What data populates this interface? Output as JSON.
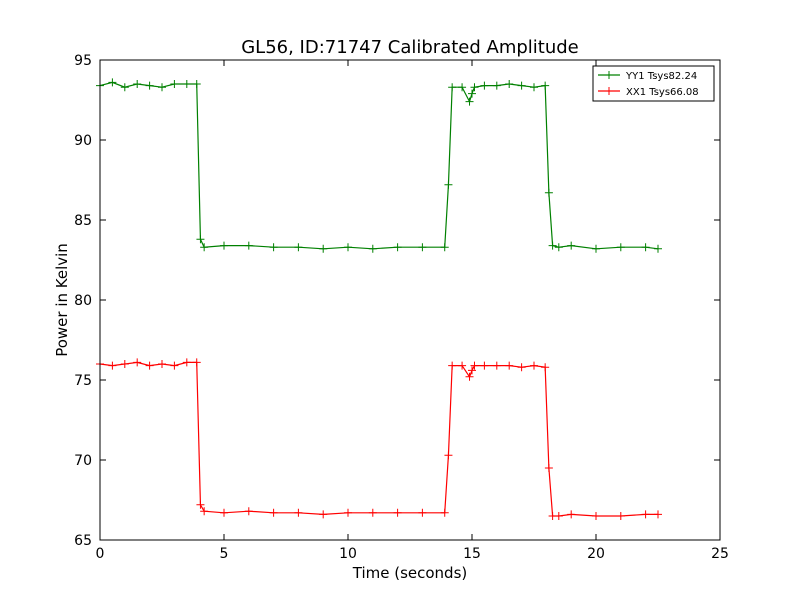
{
  "chart_data": {
    "type": "line",
    "title": "GL56, ID:71747 Calibrated Amplitude",
    "xlabel": "Time (seconds)",
    "ylabel": "Power in Kelvin",
    "xlim": [
      0,
      25
    ],
    "ylim": [
      65,
      95
    ],
    "xticks": [
      0,
      5,
      10,
      15,
      20,
      25
    ],
    "yticks": [
      65,
      70,
      75,
      80,
      85,
      90,
      95
    ],
    "grid": false,
    "legend_position": "top-right",
    "marker": "+",
    "series": [
      {
        "name": "YY1 Tsys82.24",
        "color": "#008000",
        "x": [
          0.0,
          0.5,
          1.0,
          1.5,
          2.0,
          2.5,
          3.0,
          3.5,
          3.9,
          4.05,
          4.2,
          5.0,
          6.0,
          7.0,
          8.0,
          9.0,
          10.0,
          11.0,
          12.0,
          13.0,
          13.9,
          14.05,
          14.2,
          14.6,
          14.9,
          15.0,
          15.1,
          15.5,
          16.0,
          16.5,
          17.0,
          17.5,
          17.95,
          18.1,
          18.25,
          18.5,
          19.0,
          20.0,
          21.0,
          22.0,
          22.5
        ],
        "values": [
          93.4,
          93.6,
          93.3,
          93.5,
          93.4,
          93.3,
          93.5,
          93.5,
          93.5,
          83.8,
          83.3,
          83.4,
          83.4,
          83.3,
          83.3,
          83.2,
          83.3,
          83.2,
          83.3,
          83.3,
          83.3,
          87.2,
          93.3,
          93.3,
          92.4,
          92.9,
          93.3,
          93.4,
          93.4,
          93.5,
          93.4,
          93.3,
          93.4,
          86.7,
          83.4,
          83.3,
          83.4,
          83.2,
          83.3,
          83.3,
          83.2
        ]
      },
      {
        "name": "XX1 Tsys66.08",
        "color": "#ff0000",
        "x": [
          0.0,
          0.5,
          1.0,
          1.5,
          2.0,
          2.5,
          3.0,
          3.5,
          3.9,
          4.05,
          4.2,
          5.0,
          6.0,
          7.0,
          8.0,
          9.0,
          10.0,
          11.0,
          12.0,
          13.0,
          13.9,
          14.05,
          14.2,
          14.6,
          14.9,
          15.0,
          15.1,
          15.5,
          16.0,
          16.5,
          17.0,
          17.5,
          17.95,
          18.1,
          18.25,
          18.5,
          19.0,
          20.0,
          21.0,
          22.0,
          22.5
        ],
        "values": [
          76.0,
          75.9,
          76.0,
          76.1,
          75.9,
          76.0,
          75.9,
          76.1,
          76.1,
          67.2,
          66.8,
          66.7,
          66.8,
          66.7,
          66.7,
          66.6,
          66.7,
          66.7,
          66.7,
          66.7,
          66.7,
          70.3,
          75.9,
          75.9,
          75.2,
          75.6,
          75.9,
          75.9,
          75.9,
          75.9,
          75.8,
          75.9,
          75.8,
          69.5,
          66.5,
          66.5,
          66.6,
          66.5,
          66.5,
          66.6,
          66.6
        ]
      }
    ]
  }
}
